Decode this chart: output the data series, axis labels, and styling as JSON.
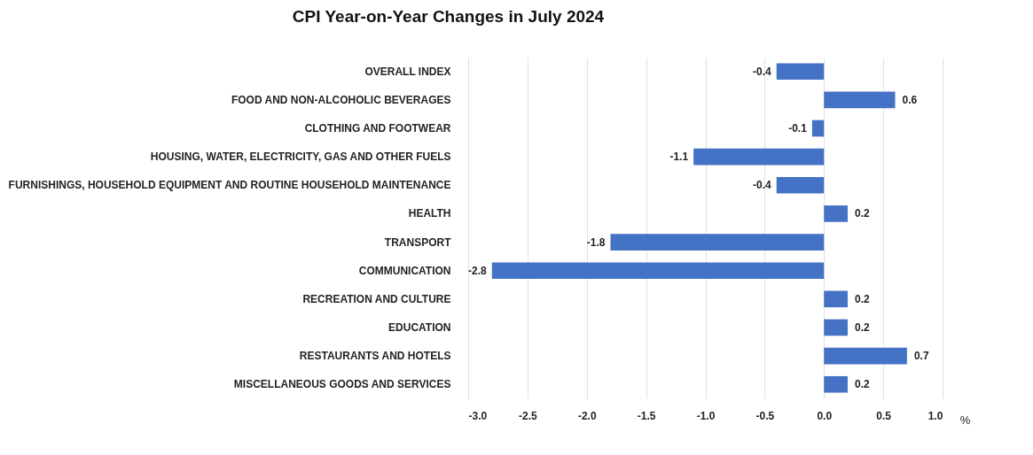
{
  "chart_data": {
    "type": "bar",
    "orientation": "horizontal",
    "title": "CPI Year-on-Year Changes in July 2024",
    "xlabel": "%",
    "categories": [
      "OVERALL INDEX",
      "FOOD AND NON-ALCOHOLIC BEVERAGES",
      "CLOTHING AND FOOTWEAR",
      "HOUSING, WATER, ELECTRICITY, GAS AND OTHER FUELS",
      "FURNISHINGS, HOUSEHOLD EQUIPMENT AND ROUTINE HOUSEHOLD MAINTENANCE",
      "HEALTH",
      "TRANSPORT",
      "COMMUNICATION",
      "RECREATION AND CULTURE",
      "EDUCATION",
      "RESTAURANTS AND HOTELS",
      "MISCELLANEOUS GOODS AND SERVICES"
    ],
    "values": [
      -0.4,
      0.6,
      -0.1,
      -1.1,
      -0.4,
      0.2,
      -1.8,
      -2.8,
      0.2,
      0.2,
      0.7,
      0.2
    ],
    "color": "#4472c4",
    "data_labels": true,
    "grid": "x",
    "xlim": [
      -3.0,
      1.0
    ],
    "xticks": [
      {
        "value": -3,
        "label": "-3.0"
      },
      {
        "value": -2.5,
        "label": "-2.5"
      },
      {
        "value": -2,
        "label": "-2.0"
      },
      {
        "value": -1.5,
        "label": "-1.5"
      },
      {
        "value": -1,
        "label": "-1.0"
      },
      {
        "value": -0.5,
        "label": "-0.5"
      },
      {
        "value": 0,
        "label": "0.0"
      },
      {
        "value": 0.5,
        "label": "0.5"
      },
      {
        "value": 1,
        "label": "1.0"
      }
    ]
  }
}
